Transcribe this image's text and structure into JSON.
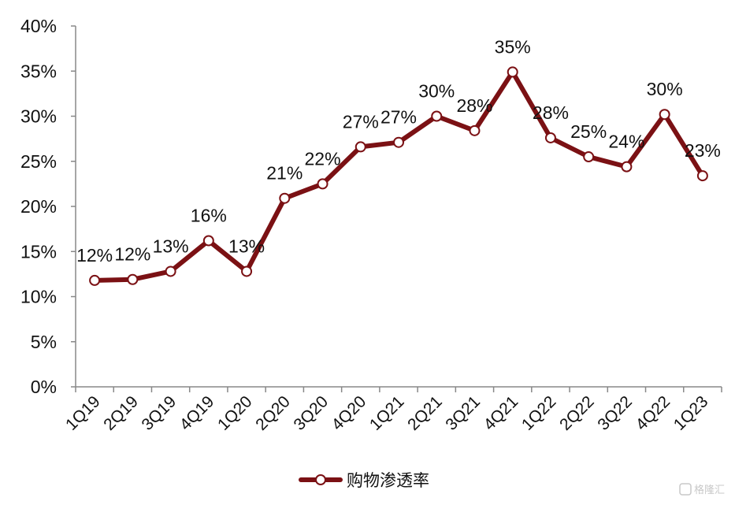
{
  "chart_data": {
    "type": "line",
    "categories": [
      "1Q19",
      "2Q19",
      "3Q19",
      "4Q19",
      "1Q20",
      "2Q20",
      "3Q20",
      "4Q20",
      "1Q21",
      "2Q21",
      "3Q21",
      "4Q21",
      "1Q22",
      "2Q22",
      "3Q22",
      "4Q22",
      "1Q23"
    ],
    "series": [
      {
        "name": "购物渗透率",
        "values": [
          11.8,
          11.9,
          12.8,
          16.2,
          12.8,
          20.9,
          22.5,
          26.6,
          27.1,
          30.0,
          28.4,
          34.9,
          27.6,
          25.5,
          24.4,
          30.2,
          23.4
        ],
        "labels": [
          "12%",
          "12%",
          "13%",
          "16%",
          "13%",
          "21%",
          "22%",
          "27%",
          "27%",
          "30%",
          "28%",
          "35%",
          "28%",
          "25%",
          "24%",
          "30%",
          "23%"
        ],
        "color": "#7b1114",
        "marker_fill": "#ffffff"
      }
    ],
    "y_ticks": [
      "0%",
      "5%",
      "10%",
      "15%",
      "20%",
      "25%",
      "30%",
      "35%",
      "40%"
    ],
    "ylim": [
      0,
      40
    ],
    "legend_position": "bottom-center",
    "grid": false
  },
  "watermark": {
    "icon": "gelonghui-logo-icon",
    "text": "格隆汇"
  }
}
